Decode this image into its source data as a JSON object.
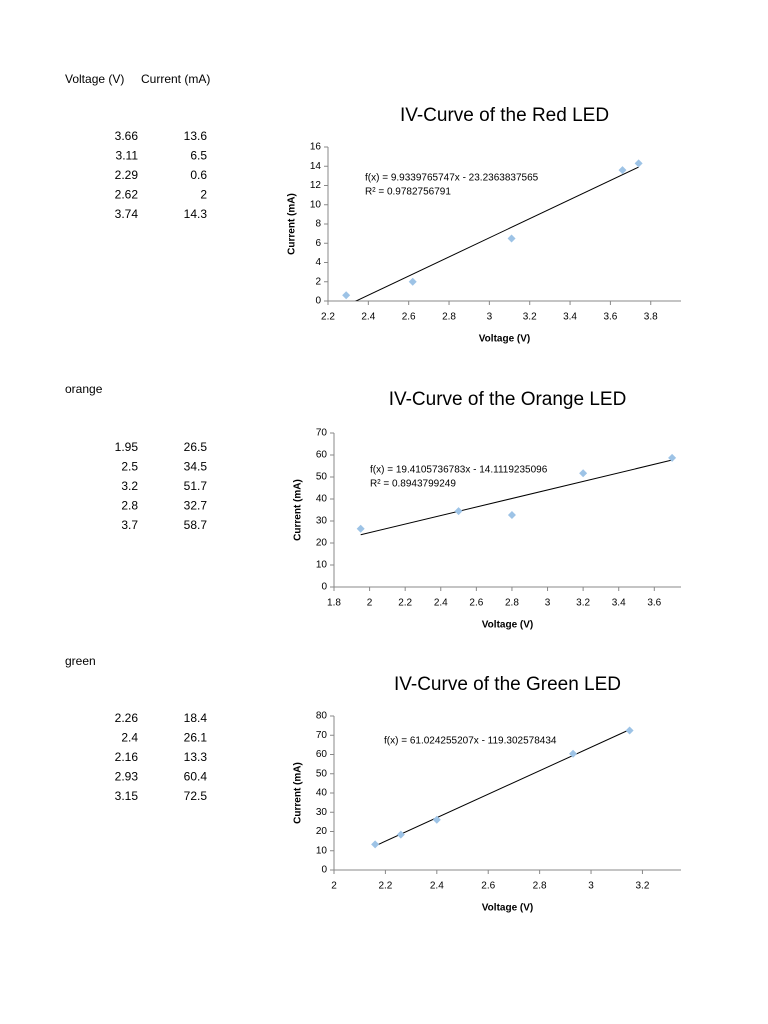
{
  "header": {
    "voltage": "Voltage (V)",
    "current": "Current (mA)"
  },
  "tables": [
    {
      "rows": [
        [
          3.66,
          13.6
        ],
        [
          3.11,
          6.5
        ],
        [
          2.29,
          0.6
        ],
        [
          2.62,
          2
        ],
        [
          3.74,
          14.3
        ]
      ]
    },
    {
      "label": "orange",
      "rows": [
        [
          1.95,
          26.5
        ],
        [
          2.5,
          34.5
        ],
        [
          3.2,
          51.7
        ],
        [
          2.8,
          32.7
        ],
        [
          3.7,
          58.7
        ]
      ]
    },
    {
      "label": "green",
      "rows": [
        [
          2.26,
          18.4
        ],
        [
          2.4,
          26.1
        ],
        [
          2.16,
          13.3
        ],
        [
          2.93,
          60.4
        ],
        [
          3.15,
          72.5
        ]
      ]
    }
  ],
  "chart_data": [
    {
      "type": "scatter",
      "title": "IV-Curve of the Red LED",
      "x_label": "Voltage (V)",
      "y_label": "Current (mA)",
      "x": [
        3.66,
        3.11,
        2.29,
        2.62,
        3.74
      ],
      "values": [
        13.6,
        6.5,
        0.6,
        2,
        14.3
      ],
      "color": "#9dc3e6",
      "xlim": [
        2.2,
        3.95
      ],
      "xticks": [
        2.2,
        2.4,
        2.6,
        2.8,
        3,
        3.2,
        3.4,
        3.6,
        3.8
      ],
      "ylim": [
        0,
        16
      ],
      "yticks": [
        0,
        2,
        4,
        6,
        8,
        10,
        12,
        14,
        16
      ],
      "trendline": {
        "slope": 9.9339765747,
        "intercept": -23.2363837565,
        "equation": "f(x) = 9.9339765747x - 23.2363837565",
        "r_squared": "R² = 0.9782756791"
      }
    },
    {
      "type": "scatter",
      "title": "IV-Curve of the Orange LED",
      "x_label": "Voltage (V)",
      "y_label": "Current (mA)",
      "x": [
        1.95,
        2.5,
        3.2,
        2.8,
        3.7
      ],
      "values": [
        26.5,
        34.5,
        51.7,
        32.7,
        58.7
      ],
      "color": "#9dc3e6",
      "xlim": [
        1.8,
        3.75
      ],
      "xticks": [
        1.8,
        2,
        2.2,
        2.4,
        2.6,
        2.8,
        3,
        3.2,
        3.4,
        3.6
      ],
      "ylim": [
        0,
        70
      ],
      "yticks": [
        0,
        10,
        20,
        30,
        40,
        50,
        60,
        70
      ],
      "trendline": {
        "slope": 19.4105736783,
        "intercept": -14.1119235096,
        "equation": "f(x) = 19.4105736783x - 14.1119235096",
        "r_squared": "R² = 0.8943799249"
      }
    },
    {
      "type": "scatter",
      "title": "IV-Curve of the Green LED",
      "x_label": "Voltage (V)",
      "y_label": "Current (mA)",
      "x": [
        2.26,
        2.4,
        2.16,
        2.93,
        3.15
      ],
      "values": [
        18.4,
        26.1,
        13.3,
        60.4,
        72.5
      ],
      "color": "#9dc3e6",
      "xlim": [
        2,
        3.35
      ],
      "xticks": [
        2,
        2.2,
        2.4,
        2.6,
        2.8,
        3,
        3.2
      ],
      "ylim": [
        0,
        80
      ],
      "yticks": [
        0,
        10,
        20,
        30,
        40,
        50,
        60,
        70,
        80
      ],
      "trendline": {
        "slope": 61.024255207,
        "intercept": -119.302578434,
        "equation": "f(x) = 61.024255207x - 119.302578434"
      }
    }
  ]
}
